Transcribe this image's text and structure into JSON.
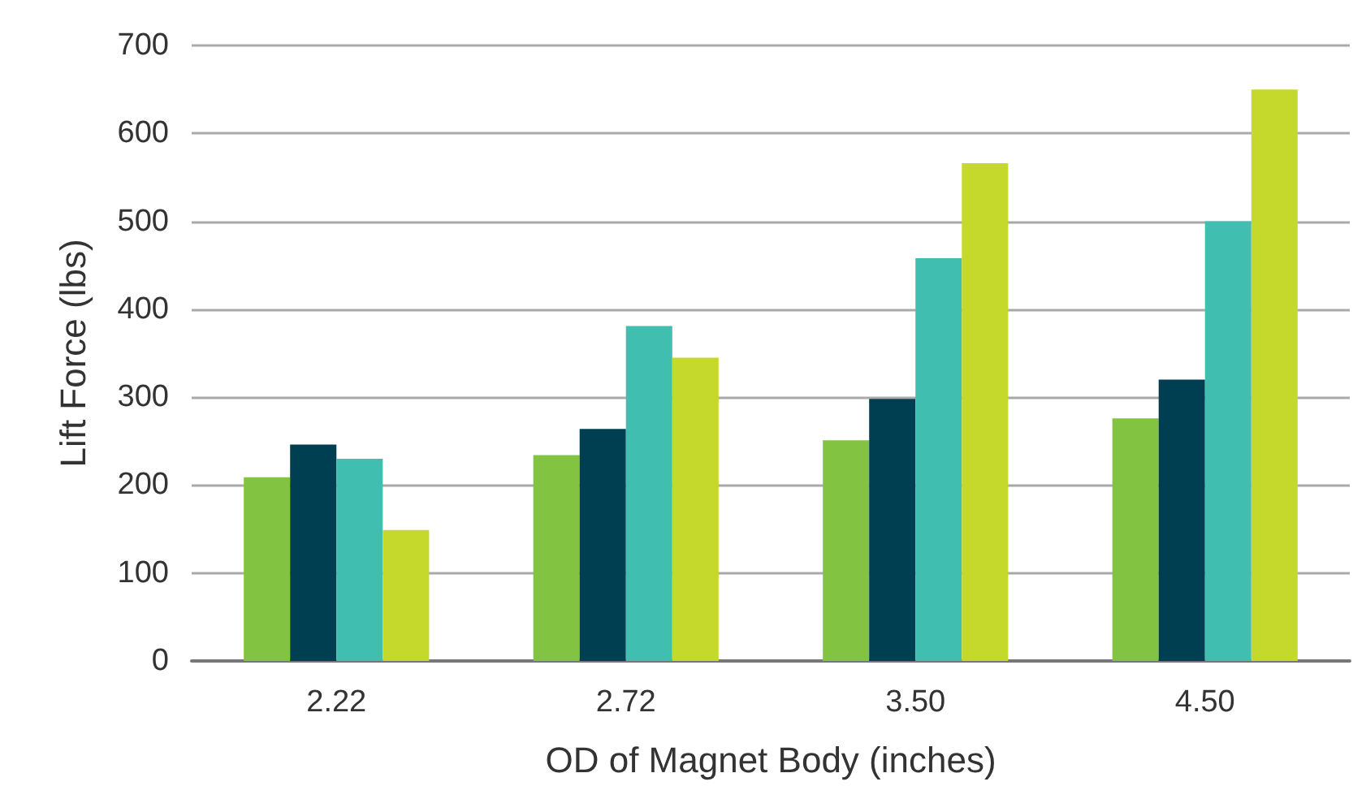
{
  "chart_data": {
    "type": "bar",
    "xlabel": "OD of Magnet Body (inches)",
    "ylabel": "Lift Force (lbs)",
    "categories": [
      "2.22",
      "2.72",
      "3.50",
      "4.50"
    ],
    "series": [
      {
        "color": "#82c341",
        "values": [
          209,
          234,
          251,
          276
        ]
      },
      {
        "color": "#003f51",
        "values": [
          246,
          264,
          298,
          320
        ]
      },
      {
        "color": "#40bfb0",
        "values": [
          230,
          381,
          458,
          500
        ]
      },
      {
        "color": "#c5d92d",
        "values": [
          149,
          345,
          566,
          650
        ]
      }
    ],
    "ylim": [
      0,
      700
    ],
    "yticks": [
      0,
      100,
      200,
      300,
      400,
      500,
      600,
      700
    ],
    "grid": "y"
  }
}
